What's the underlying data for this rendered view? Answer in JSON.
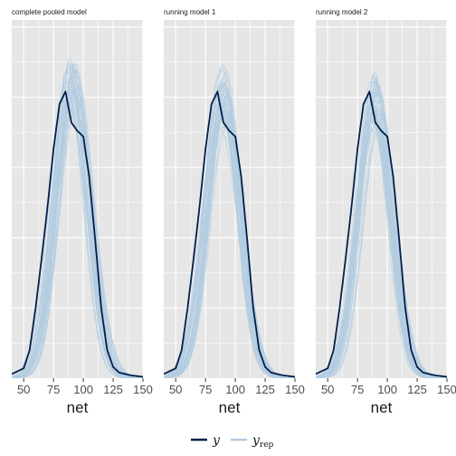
{
  "chart_data": {
    "type": "line",
    "colors": {
      "y": "#011f4b",
      "yrep": "#b3cde0",
      "panel_bg": "#e6e6e6",
      "grid": "#ffffff"
    },
    "xlabel": "net",
    "xlim": [
      40,
      150
    ],
    "x_ticks": [
      50,
      75,
      100,
      125,
      150
    ],
    "ylim": [
      0,
      0.0255
    ],
    "grid": true,
    "legend_position": "bottom",
    "legend": [
      {
        "key": "y",
        "label": "y",
        "subscript": ""
      },
      {
        "key": "yrep",
        "label": "y",
        "subscript": "rep"
      }
    ],
    "y_density": {
      "x": [
        40,
        50,
        55,
        60,
        65,
        70,
        75,
        80,
        85,
        90,
        95,
        100,
        105,
        110,
        115,
        120,
        125,
        130,
        140,
        150
      ],
      "values": [
        0.0003,
        0.0007,
        0.002,
        0.005,
        0.0085,
        0.0122,
        0.0163,
        0.0195,
        0.0204,
        0.0182,
        0.0176,
        0.0172,
        0.0143,
        0.0098,
        0.005,
        0.002,
        0.0008,
        0.0004,
        0.0002,
        0.0001
      ]
    },
    "panels": [
      {
        "title": "complete pooled model",
        "yrep_peak_range": [
          0.019,
          0.0229
        ],
        "yrep_shift_range": [
          -3,
          4
        ]
      },
      {
        "title": "running model 1",
        "yrep_peak_range": [
          0.0178,
          0.0222
        ],
        "yrep_shift_range": [
          -3,
          3
        ]
      },
      {
        "title": "running model 2",
        "yrep_peak_range": [
          0.0175,
          0.0215
        ],
        "yrep_shift_range": [
          -3,
          3
        ]
      }
    ]
  }
}
